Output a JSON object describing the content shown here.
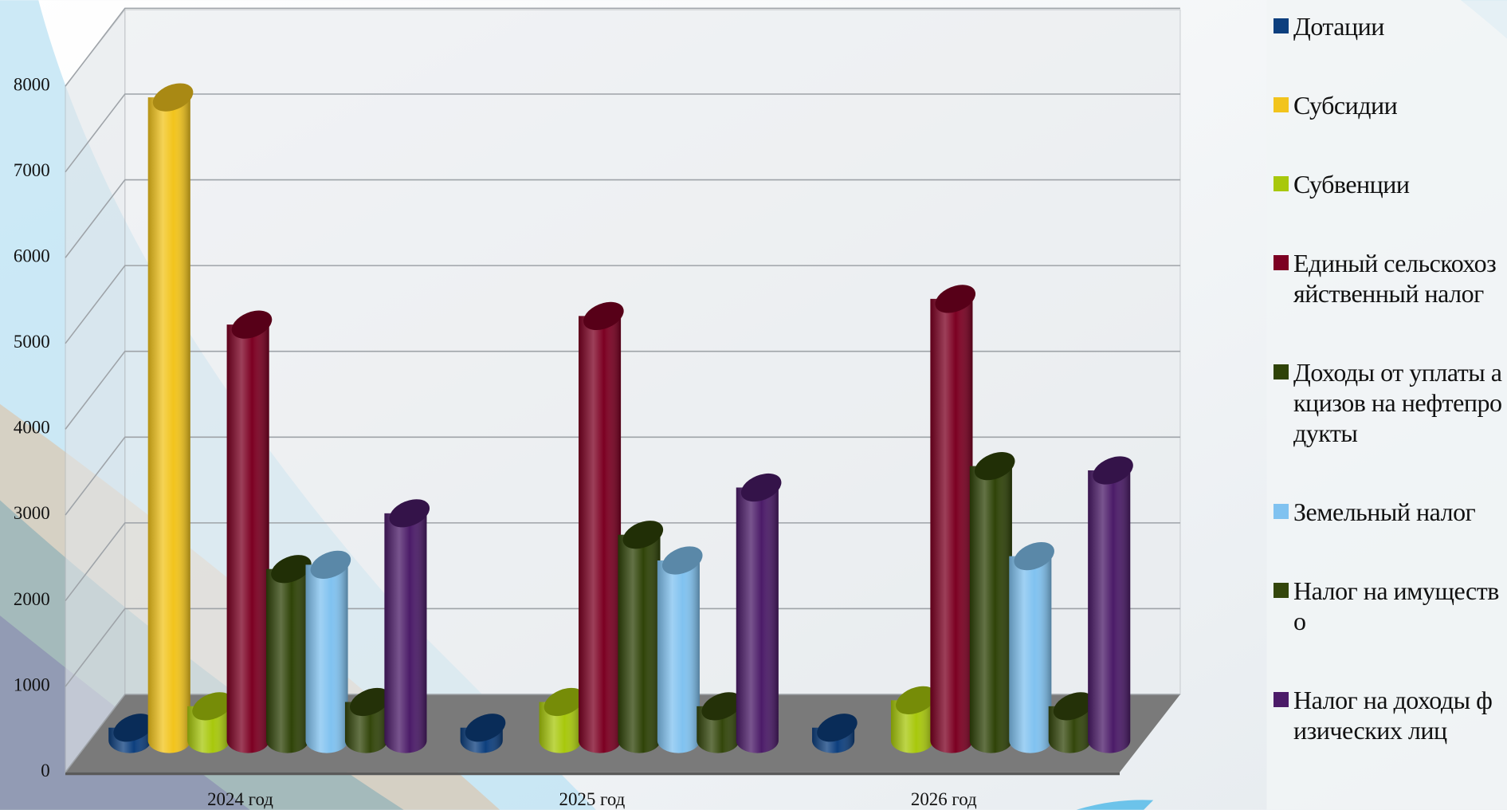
{
  "chart_data": {
    "type": "bar",
    "categories": [
      "2024 год",
      "2025 год",
      "2026 год"
    ],
    "series": [
      {
        "name": "Дотации",
        "color": "#0d3f7e",
        "values": [
          150,
          150,
          150
        ]
      },
      {
        "name": "Субсидии",
        "color": "#f2c41c",
        "values": [
          7500,
          null,
          null
        ]
      },
      {
        "name": "Субвенции",
        "color": "#a8c80c",
        "values": [
          400,
          450,
          470
        ]
      },
      {
        "name": "Единый сельскохозяйственный налог",
        "color": "#7c0022",
        "values": [
          4850,
          4950,
          5150
        ]
      },
      {
        "name": "Доходы от уплаты акцизов на нефтепродукты",
        "color": "#2f4308",
        "values": [
          2000,
          2400,
          3200
        ]
      },
      {
        "name": "Земельный налог",
        "color": "#80c2f0",
        "values": [
          2050,
          2100,
          2150
        ]
      },
      {
        "name": "Налог на имущество",
        "color": "#33460b",
        "values": [
          450,
          400,
          400
        ]
      },
      {
        "name": "Налог на доходы физических лиц",
        "color": "#4b1b68",
        "values": [
          2650,
          2950,
          3150
        ]
      }
    ],
    "ylim": [
      0,
      8000
    ],
    "yticks": [
      0,
      1000,
      2000,
      3000,
      4000,
      5000,
      6000,
      7000,
      8000
    ],
    "grid": true,
    "legend": "right"
  }
}
